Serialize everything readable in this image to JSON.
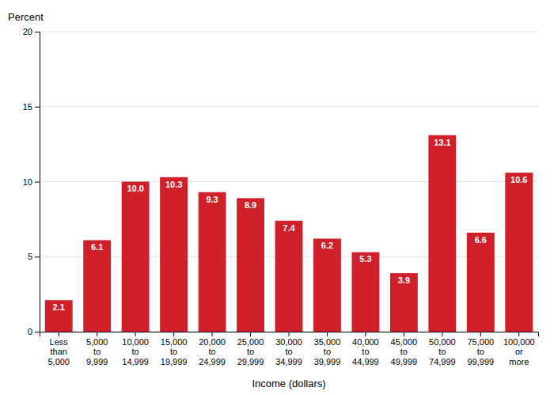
{
  "chart_data": {
    "type": "bar",
    "categories": [
      "Less\nthan\n5,000",
      "5,000\nto\n9,999",
      "10,000\nto\n14,999",
      "15,000\nto\n19,999",
      "20,000\nto\n24,999",
      "25,000\nto\n29,999",
      "30,000\nto\n34,999",
      "35,000\nto\n39,999",
      "40,000\nto\n44,999",
      "45,000\nto\n49,999",
      "50,000\nto\n74,999",
      "75,000\nto\n99,999",
      "100,000\nor\nmore"
    ],
    "values": [
      2.1,
      6.1,
      10.0,
      10.3,
      9.3,
      8.9,
      7.4,
      6.2,
      5.3,
      3.9,
      13.1,
      6.6,
      10.6
    ],
    "value_labels": [
      "2.1",
      "6.1",
      "10.0",
      "10.3",
      "9.3",
      "8.9",
      "7.4",
      "6.2",
      "5.3",
      "3.9",
      "13.1",
      "6.6",
      "10.6"
    ],
    "color": "#D0202A",
    "xlabel": "Income (dollars)",
    "ylabel": "Percent",
    "ylim": [
      0,
      20
    ],
    "yticks": [
      0,
      5,
      10,
      15,
      20
    ],
    "grid": true,
    "data_labels": true
  }
}
